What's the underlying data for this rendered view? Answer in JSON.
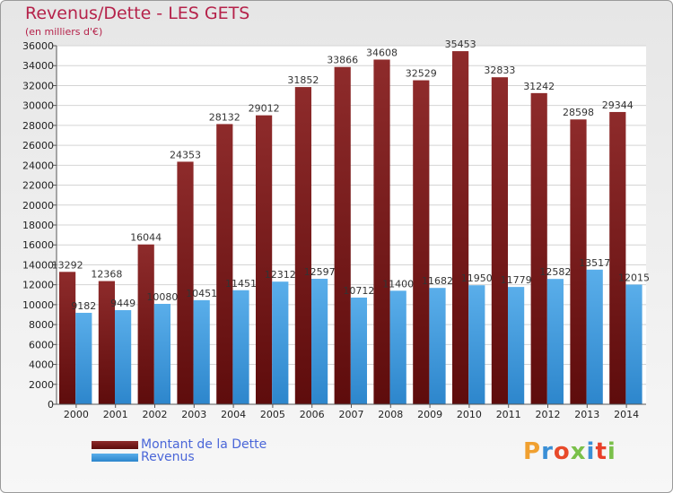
{
  "header": {
    "title": "Revenus/Dette - LES GETS",
    "subtitle": "(en milliers d'€)"
  },
  "logo": {
    "text": "Proxiti",
    "colors": [
      "#f0a030",
      "#3a8fd6",
      "#e84a2a",
      "#7ac04a",
      "#3a8fd6",
      "#e8402a",
      "#7ac04a"
    ]
  },
  "chart_data": {
    "type": "bar",
    "categories": [
      "2000",
      "2001",
      "2002",
      "2003",
      "2004",
      "2005",
      "2006",
      "2007",
      "2008",
      "2009",
      "2010",
      "2011",
      "2012",
      "2013",
      "2014"
    ],
    "series": [
      {
        "name": "Montant de la Dette",
        "color": "#7a1c1c",
        "values": [
          13292,
          12368,
          16044,
          24353,
          28132,
          29012,
          31852,
          33866,
          34608,
          32529,
          35453,
          32833,
          31242,
          28598,
          29344
        ]
      },
      {
        "name": "Revenus",
        "color": "#3a9ae0",
        "values": [
          9182,
          9449,
          10080,
          10451,
          11451,
          12312,
          12597,
          10712,
          11400,
          11682,
          11950,
          11779,
          12582,
          13517,
          12015
        ]
      }
    ],
    "ylim": [
      0,
      36000
    ],
    "yticks": [
      0,
      2000,
      4000,
      6000,
      8000,
      10000,
      12000,
      14000,
      16000,
      18000,
      20000,
      22000,
      24000,
      26000,
      28000,
      30000,
      32000,
      34000,
      36000
    ],
    "grid": true,
    "legend_position": "bottom-left"
  }
}
